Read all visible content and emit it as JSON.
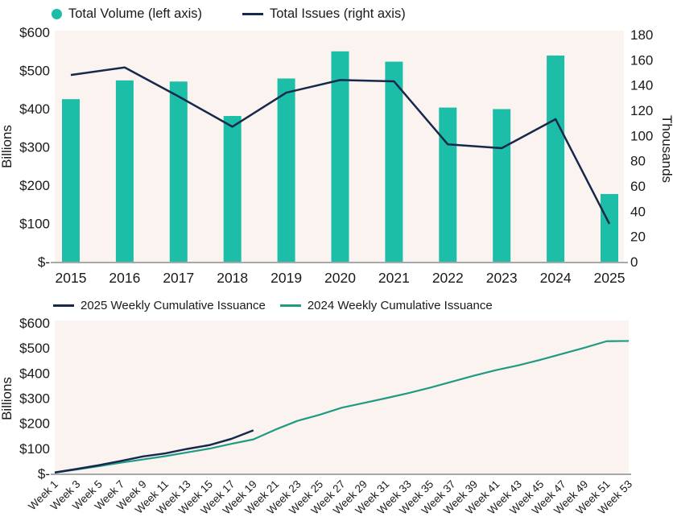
{
  "colors": {
    "teal": "#1CBEA7",
    "teal_line": "#1E9B82",
    "navy": "#17284D",
    "plot_bg": "#FAF3F0",
    "axis_line": "#A8A8A8",
    "text": "#1A1A1A"
  },
  "chart_data": [
    {
      "type": "bar+line combo",
      "legend": [
        {
          "label": "Total Volume (left axis)",
          "marker": "dot",
          "color_key": "teal"
        },
        {
          "label": "Total Issues (right axis)",
          "marker": "dash",
          "color_key": "navy"
        }
      ],
      "categories": [
        "2015",
        "2016",
        "2017",
        "2018",
        "2019",
        "2020",
        "2021",
        "2022",
        "2023",
        "2024",
        "2025"
      ],
      "series": [
        {
          "name": "Total Volume (left axis)",
          "type": "bar",
          "axis": "left",
          "unit": "$ billions",
          "values": [
            425,
            474,
            471,
            381,
            479,
            550,
            523,
            403,
            399,
            539,
            177
          ]
        },
        {
          "name": "Total Issues (right axis)",
          "type": "line",
          "axis": "right",
          "unit": "thousands",
          "values": [
            148,
            154,
            131,
            107,
            134,
            144,
            143,
            93,
            90,
            113,
            30
          ]
        }
      ],
      "left_axis": {
        "title": "Billions",
        "ticks": [
          "$600",
          "$500",
          "$400",
          "$300",
          "$200",
          "$100",
          "$-"
        ],
        "min": 0,
        "max": 600
      },
      "right_axis": {
        "title": "Thousands",
        "ticks": [
          "180",
          "160",
          "140",
          "120",
          "100",
          "80",
          "60",
          "40",
          "20",
          "0"
        ],
        "min": 0,
        "max": 180
      },
      "grid": "off",
      "legend_position": "top"
    },
    {
      "type": "line",
      "legend": [
        {
          "label": "2025 Weekly Cumulative Issuance",
          "marker": "dash",
          "color_key": "navy"
        },
        {
          "label": "2024 Weekly Cumulative Issuance",
          "marker": "dash",
          "color_key": "teal_line"
        }
      ],
      "x_ticks": [
        "Week 1",
        "Week 3",
        "Week 5",
        "Week 7",
        "Week 9",
        "Week 11",
        "Week 13",
        "Week 15",
        "Week 17",
        "Week 19",
        "Week 21",
        "Week 23",
        "Week 25",
        "Week 27",
        "Week 29",
        "Week 31",
        "Week 33",
        "Week 35",
        "Week 37",
        "Week 39",
        "Week 41",
        "Week 43",
        "Week 45",
        "Week 47",
        "Week 49",
        "Week 51",
        "Week 53"
      ],
      "x_range": [
        1,
        53
      ],
      "series": [
        {
          "name": "2025 Weekly Cumulative Issuance",
          "color_key": "navy",
          "unit": "$ billions",
          "weeks": [
            1,
            3,
            5,
            7,
            9,
            11,
            13,
            15,
            17,
            19
          ],
          "values": [
            4,
            18,
            33,
            50,
            68,
            80,
            98,
            113,
            138,
            172
          ]
        },
        {
          "name": "2024 Weekly Cumulative Issuance",
          "color_key": "teal_line",
          "unit": "$ billions",
          "weeks": [
            1,
            3,
            5,
            7,
            9,
            11,
            13,
            15,
            17,
            19,
            21,
            23,
            25,
            27,
            29,
            31,
            33,
            35,
            37,
            39,
            41,
            43,
            45,
            47,
            49,
            51,
            53
          ],
          "values": [
            3,
            16,
            29,
            43,
            56,
            69,
            84,
            99,
            118,
            136,
            175,
            210,
            234,
            262,
            281,
            300,
            320,
            342,
            366,
            390,
            412,
            431,
            453,
            477,
            501,
            527,
            528
          ]
        }
      ],
      "left_axis": {
        "title": "Billions",
        "ticks": [
          "$600",
          "$500",
          "$400",
          "$300",
          "$200",
          "$100",
          "$-"
        ],
        "min": 0,
        "max": 600
      },
      "grid": "off",
      "legend_position": "top"
    }
  ]
}
